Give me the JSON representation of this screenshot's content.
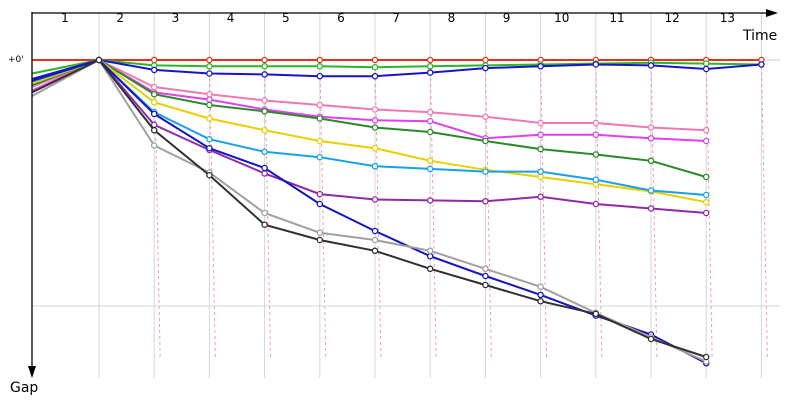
{
  "chart_data": {
    "type": "line",
    "title": "",
    "xlabel": "Time",
    "ylabel": "Gap",
    "zero_label": "+0'",
    "lap_labels": [
      "1",
      "2",
      "3",
      "4",
      "5",
      "6",
      "7",
      "8",
      "9",
      "10",
      "11",
      "12",
      "13"
    ],
    "grid": true,
    "series": [
      {
        "color": "#e8301e",
        "values": [
          0,
          0,
          0,
          0,
          0,
          0,
          0,
          0,
          0,
          0,
          0,
          0,
          0,
          0,
          0,
          0
        ]
      },
      {
        "color": "#2ab52a",
        "values": [
          15,
          0,
          6,
          7,
          7,
          7,
          8,
          7,
          6,
          5,
          4,
          3,
          4,
          5,
          7,
          0
        ]
      },
      {
        "color": "#1a14c8",
        "values": [
          21,
          0,
          11,
          15,
          16,
          18,
          18,
          14,
          9,
          7,
          5,
          6,
          10,
          5,
          0,
          0
        ]
      },
      {
        "color": "#e040f0",
        "values": [
          34,
          0,
          36,
          44,
          55,
          63,
          67,
          68,
          87,
          83,
          83,
          87,
          90,
          0,
          0,
          0
        ]
      },
      {
        "color": "#f07ab0",
        "values": [
          30,
          0,
          30,
          38,
          45,
          50,
          55,
          58,
          63,
          70,
          70,
          75,
          78,
          0,
          0,
          0
        ]
      },
      {
        "color": "#2a8a2a",
        "values": [
          28,
          0,
          38,
          50,
          57,
          65,
          75,
          80,
          90,
          99,
          105,
          112,
          130,
          0,
          0,
          0
        ]
      },
      {
        "color": "#e8d000",
        "values": [
          26,
          0,
          47,
          65,
          78,
          90,
          98,
          112,
          122,
          130,
          138,
          146,
          158,
          0,
          0,
          0
        ]
      },
      {
        "color": "#1aa0e8",
        "values": [
          24,
          0,
          58,
          88,
          102,
          108,
          118,
          121,
          124,
          124,
          133,
          145,
          150,
          0,
          0,
          0
        ]
      },
      {
        "color": "#902aa8",
        "values": [
          23,
          0,
          72,
          100,
          126,
          149,
          155,
          156,
          157,
          152,
          160,
          165,
          170,
          0,
          0,
          0
        ]
      },
      {
        "color": "#1515c0",
        "values": [
          23,
          0,
          60,
          98,
          120,
          160,
          190,
          218,
          240,
          261,
          284,
          305,
          337,
          0,
          0,
          0
        ]
      },
      {
        "color": "#a0a0a0",
        "values": [
          40,
          0,
          95,
          125,
          170,
          192,
          200,
          212,
          232,
          252,
          281,
          308,
          335,
          0,
          0,
          0
        ]
      },
      {
        "color": "#303030",
        "values": [
          36,
          0,
          78,
          128,
          183,
          200,
          212,
          232,
          250,
          268,
          282,
          310,
          330,
          0,
          0,
          0
        ]
      }
    ]
  }
}
